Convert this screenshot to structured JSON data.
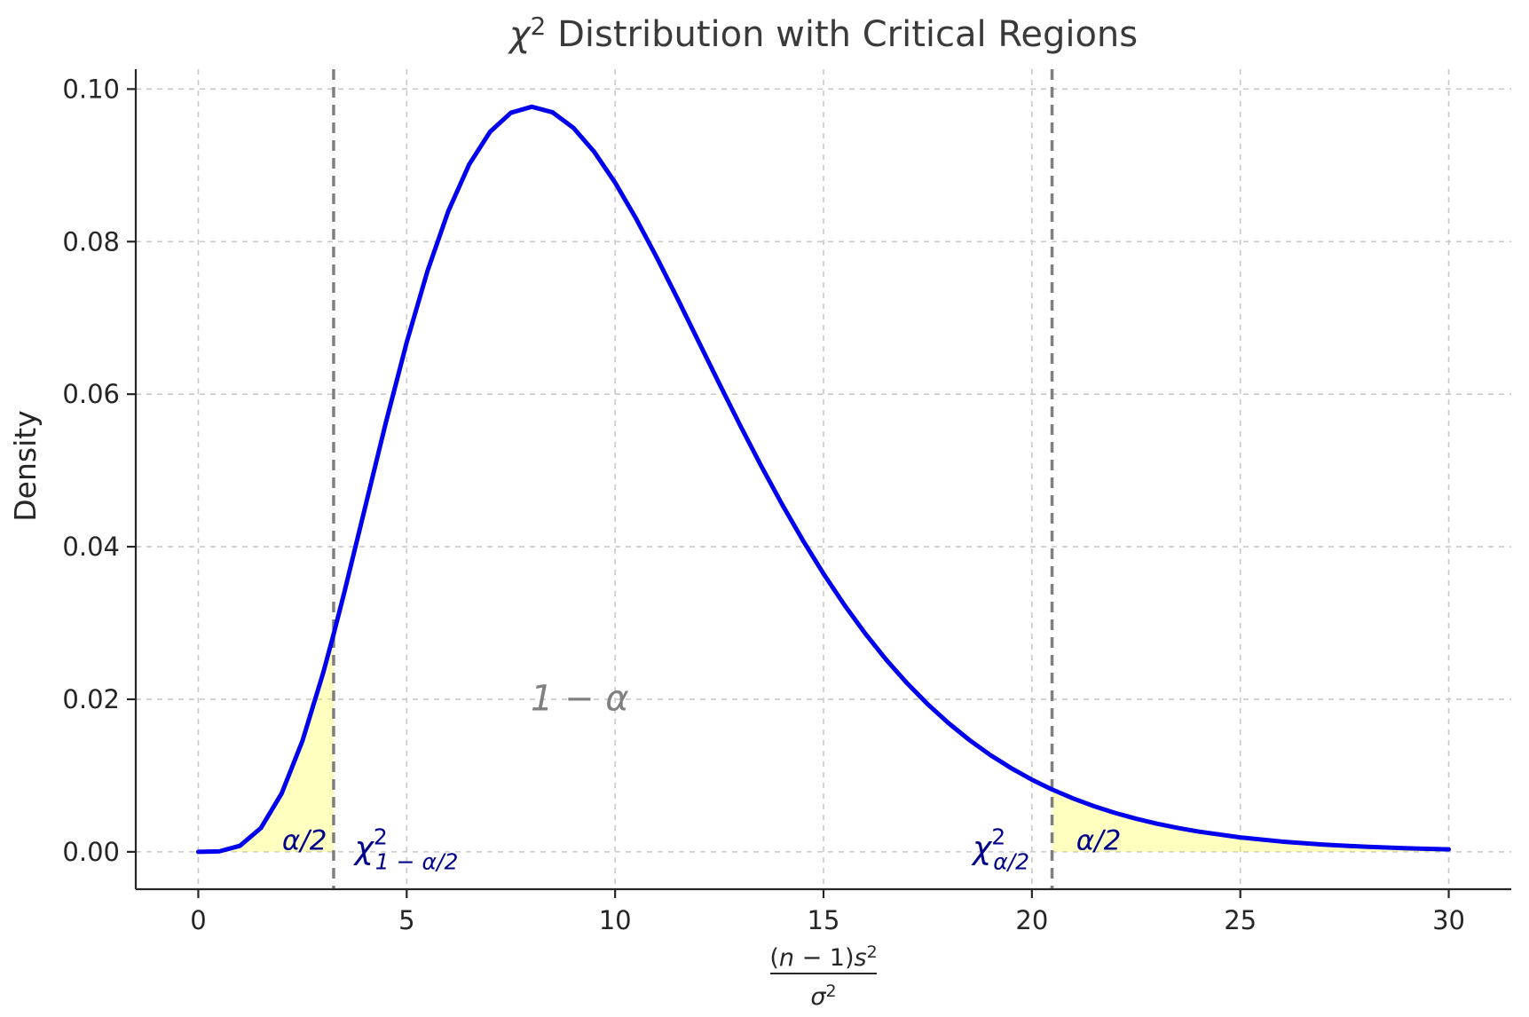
{
  "page": {
    "background": "#ffffff"
  },
  "chart_data": {
    "type": "line",
    "title": {
      "chi": "χ",
      "sup": "2",
      "rest": " Distribution with Critical Regions"
    },
    "ylabel": "Density",
    "xlabel": {
      "numerator": [
        [
          "(",
          0,
          0
        ],
        [
          "n",
          1,
          0
        ],
        " ",
        [
          " − 1)",
          0,
          0
        ],
        [
          "s",
          1,
          0
        ],
        [
          "2",
          0,
          1
        ]
      ],
      "denominator": [
        [
          "σ",
          1,
          0
        ],
        [
          "2",
          0,
          1
        ]
      ]
    },
    "x_ticks": {
      "values": [
        0,
        5,
        10,
        15,
        20,
        25,
        30
      ],
      "labels": [
        "0",
        "5",
        "10",
        "15",
        "20",
        "25",
        "30"
      ]
    },
    "y_ticks": {
      "values": [
        0,
        0.02,
        0.04,
        0.06,
        0.08,
        0.1
      ],
      "labels": [
        "0.00",
        "0.02",
        "0.04",
        "0.06",
        "0.08",
        "0.10"
      ]
    },
    "xlim": [
      -1.5,
      31.5
    ],
    "ylim": [
      -0.0049,
      0.1026
    ],
    "grid": true,
    "distribution": {
      "name": "chi-square",
      "df": 10
    },
    "critical_values": {
      "lower": 3.247,
      "upper": 20.483
    },
    "curve_points": {
      "x": [
        0,
        0.5,
        1,
        1.5,
        2,
        2.5,
        3,
        3.247,
        3.5,
        4,
        4.5,
        5,
        5.5,
        6,
        6.5,
        7,
        7.5,
        8,
        8.5,
        9,
        9.5,
        10,
        10.5,
        11,
        11.5,
        12,
        12.5,
        13,
        13.5,
        14,
        14.5,
        15,
        15.5,
        16,
        16.5,
        17,
        17.5,
        18,
        18.5,
        19,
        19.5,
        20,
        20.483,
        21,
        21.5,
        22,
        22.5,
        23,
        23.5,
        24,
        25,
        26,
        27,
        28,
        29,
        30
      ],
      "y": [
        0,
        6e-05,
        0.00079,
        0.00311,
        0.00766,
        0.01457,
        0.02353,
        0.02854,
        0.03395,
        0.04511,
        0.05628,
        0.0668,
        0.07617,
        0.08402,
        0.09013,
        0.0944,
        0.09689,
        0.09768,
        0.09695,
        0.09491,
        0.09176,
        0.08773,
        0.08305,
        0.07791,
        0.07249,
        0.06693,
        0.06137,
        0.05591,
        0.05064,
        0.04561,
        0.04088,
        0.03646,
        0.03237,
        0.02863,
        0.02521,
        0.02213,
        0.01935,
        0.01687,
        0.01466,
        0.0127,
        0.010975,
        0.009458,
        0.008173,
        0.006973,
        0.005966,
        0.005094,
        0.00434,
        0.003691,
        0.003133,
        0.002654,
        0.0018955,
        0.0013449,
        0.0009487,
        0.0006655,
        0.0004645,
        0.0003226
      ]
    },
    "annotations": {
      "alpha_left": {
        "text": "α/2",
        "x": 2.55,
        "y": 0.0003
      },
      "alpha_right": {
        "text": "α/2",
        "x": 21.6,
        "y": 0.0003
      },
      "one_minus_alpha": {
        "text": "1 − α",
        "x": 9.15,
        "y": 0.0202
      },
      "chi_lower": {
        "base": "χ",
        "sup": "2",
        "sub": "1 − α/2",
        "x": 3.75,
        "y": -0.0009,
        "anchor": "start"
      },
      "chi_upper": {
        "base": "χ",
        "sup": "2",
        "sub": "α/2",
        "x": 19.94,
        "y": -0.0009,
        "anchor": "end"
      }
    },
    "colors": {
      "curve": "#0000ee",
      "tail_fill": "#ffff00",
      "tail_fill_opacity": 0.25,
      "critical_line": "#7f7f7f",
      "grid": "#c9c9c9",
      "spine": "#262626",
      "tick_label": "#262626",
      "title": "#3a3a3a",
      "annotation_navy": "#00008b",
      "annotation_gray": "#808080"
    }
  }
}
